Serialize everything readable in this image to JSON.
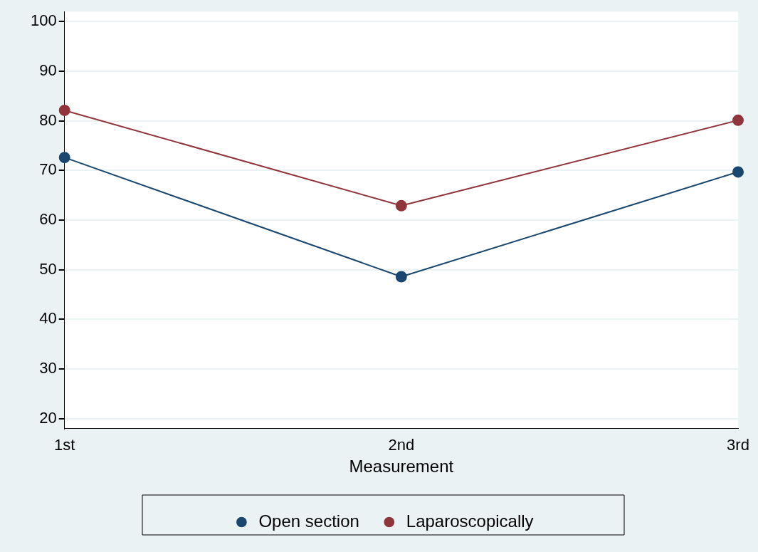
{
  "chart_data": {
    "type": "line",
    "xlabel": "Measurement",
    "categories": [
      "1st",
      "2nd",
      "3rd"
    ],
    "series": [
      {
        "name": "Open section",
        "color": "#1a476f",
        "values": [
          72.6,
          48.6,
          69.7
        ]
      },
      {
        "name": "Laparoscopically",
        "color": "#90353b",
        "values": [
          82.1,
          62.9,
          80.1
        ]
      }
    ],
    "ylim": [
      18,
      102
    ],
    "yticks": [
      20,
      30,
      40,
      50,
      60,
      70,
      80,
      90,
      100
    ],
    "grid": "y",
    "legend": "bottom",
    "marker": "circle",
    "line_style": "solid"
  }
}
